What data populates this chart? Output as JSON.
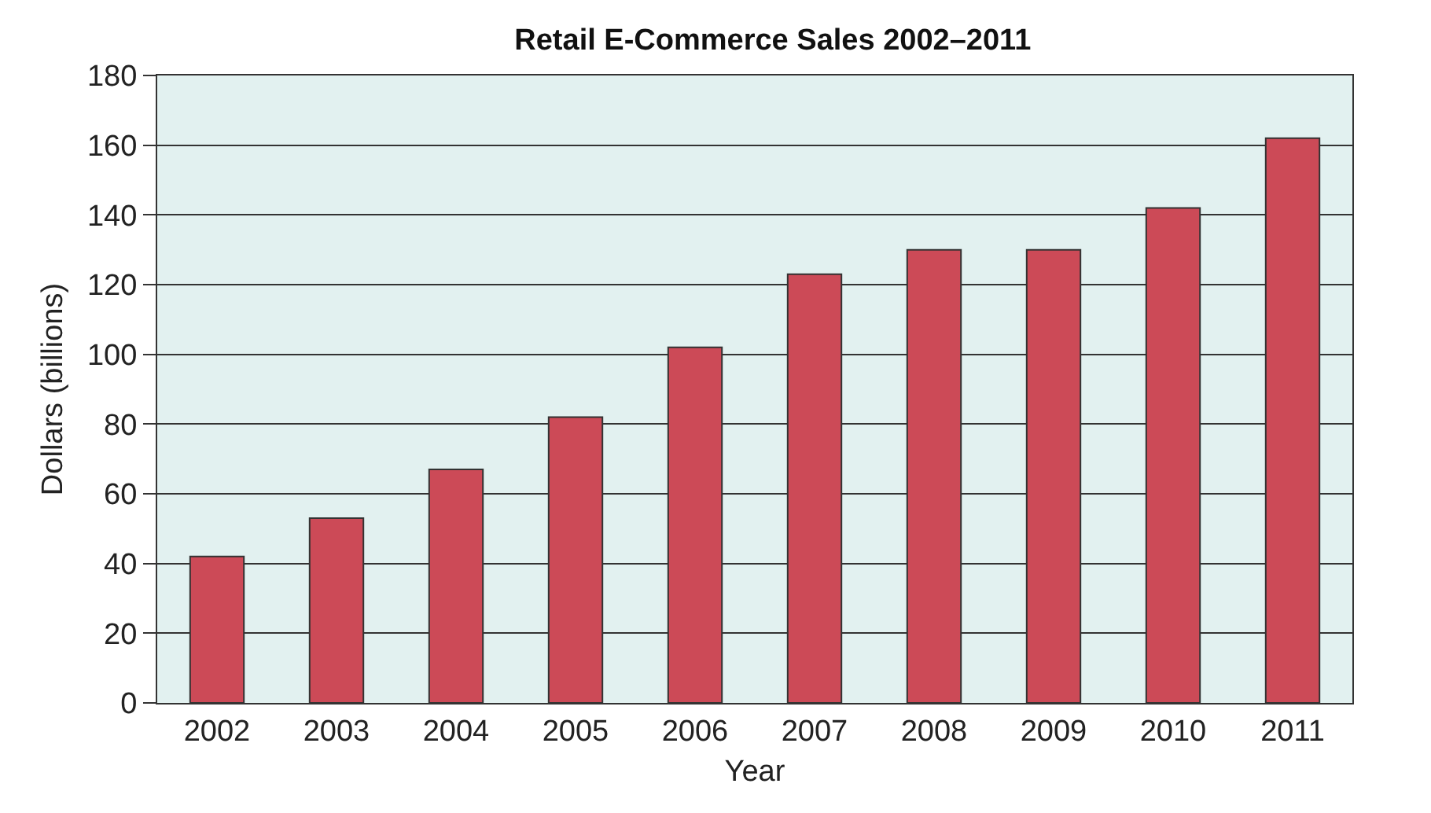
{
  "chart_data": {
    "type": "bar",
    "title": "Retail E-Commerce Sales 2002–2011",
    "xlabel": "Year",
    "ylabel": "Dollars (billions)",
    "categories": [
      "2002",
      "2003",
      "2004",
      "2005",
      "2006",
      "2007",
      "2008",
      "2009",
      "2010",
      "2011"
    ],
    "values": [
      42,
      53,
      67,
      82,
      102,
      123,
      130,
      130,
      142,
      162
    ],
    "color": "#cc4a57",
    "ylim": [
      0,
      180
    ],
    "yticks": [
      0,
      20,
      40,
      60,
      80,
      100,
      120,
      140,
      160,
      180
    ],
    "grid": "y"
  }
}
